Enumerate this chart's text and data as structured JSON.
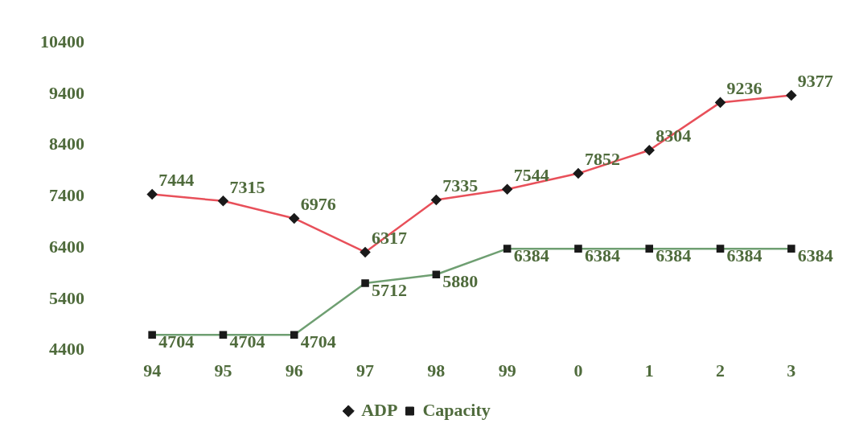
{
  "chart_data": {
    "type": "line",
    "categories": [
      "94",
      "95",
      "96",
      "97",
      "98",
      "99",
      "0",
      "1",
      "2",
      "3"
    ],
    "series": [
      {
        "name": "ADP",
        "color": "#e8505a",
        "marker": "diamond",
        "values": [
          7444,
          7315,
          6976,
          6317,
          7335,
          7544,
          7852,
          8304,
          9236,
          9377
        ]
      },
      {
        "name": "Capacity",
        "color": "#6f9f72",
        "marker": "square",
        "values": [
          4704,
          4704,
          4704,
          5712,
          5880,
          6384,
          6384,
          6384,
          6384,
          6384
        ]
      }
    ],
    "ylim": [
      4400,
      10400
    ],
    "yticks": [
      4400,
      5400,
      6400,
      7400,
      8400,
      9400,
      10400
    ],
    "grid": false,
    "legend": "bottom",
    "data_labels": true
  }
}
